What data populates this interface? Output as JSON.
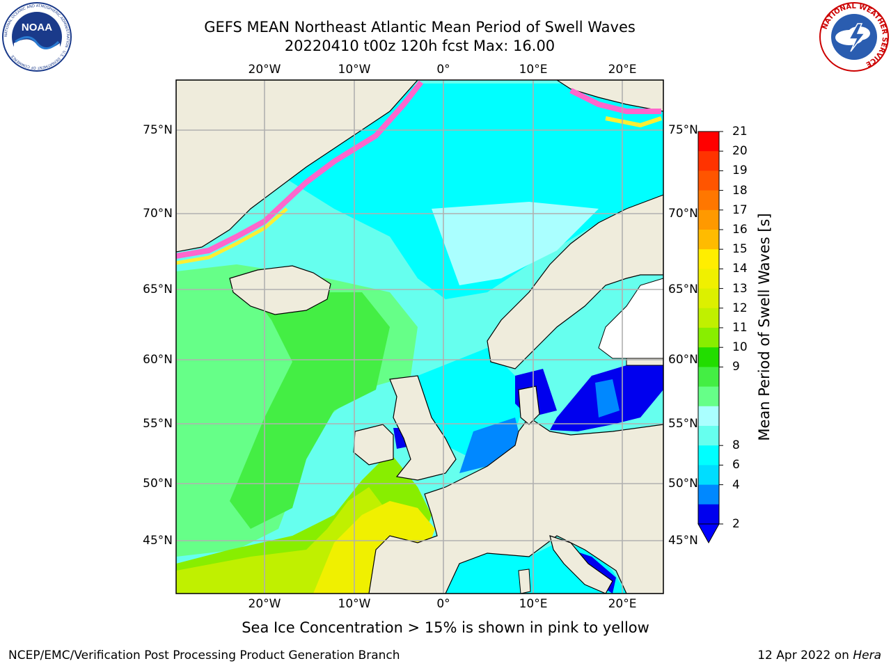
{
  "title": {
    "line1": "GEFS MEAN Northeast Atlantic Mean Period of Swell Waves",
    "line2": "20220410 t00z 120h fcst   Max: 16.00"
  },
  "logos": {
    "noaa": "NOAA",
    "noaa_ring": "NATIONAL OCEANIC AND ATMOSPHERIC ADMINISTRATION · U.S. DEPARTMENT OF COMMERCE",
    "nws_ring": "NATIONAL WEATHER SERVICE"
  },
  "map": {
    "lon_labels": [
      "20°W",
      "10°W",
      "0°",
      "10°E",
      "20°E"
    ],
    "lat_labels": [
      "75°N",
      "70°N",
      "65°N",
      "60°N",
      "55°N",
      "50°N",
      "45°N"
    ],
    "colors": {
      "land": "#efecdc",
      "ice_pink": "#ff66cc",
      "ice_yellow": "#ffee33",
      "grid": "#b0b0b0"
    }
  },
  "colorbar": {
    "label": "Mean Period of Swell Waves [s]",
    "ticks": [
      "21",
      "20",
      "19",
      "18",
      "17",
      "16",
      "15",
      "14",
      "13",
      "12",
      "11",
      "10",
      "9",
      "8",
      "6",
      "4",
      "2"
    ],
    "colors": [
      "#ff0000",
      "#ff3300",
      "#ff5500",
      "#ff7700",
      "#ff9900",
      "#ffbb00",
      "#ffee00",
      "#f0f000",
      "#dcf000",
      "#c0f000",
      "#88ee00",
      "#22dd00",
      "#44ee44",
      "#66ff88",
      "#aaffff",
      "#66ffee",
      "#00ffff",
      "#00ddff",
      "#0088ff",
      "#0000ee"
    ],
    "underflow_color": "#0000ff"
  },
  "note": "Sea Ice Concentration > 15% is shown in pink to yellow",
  "footer": {
    "left": "NCEP/EMC/Verification Post Processing Product Generation Branch",
    "date": "12 Apr 2022 on ",
    "host": "Hera"
  }
}
